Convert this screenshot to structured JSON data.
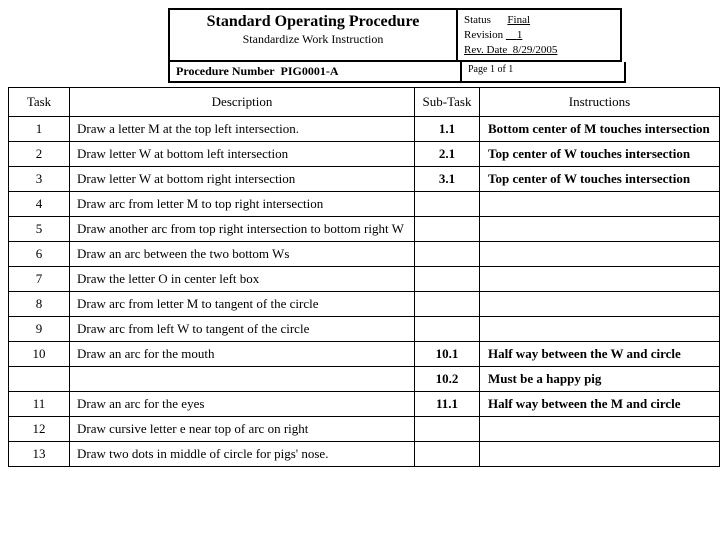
{
  "header": {
    "title": "Standard Operating Procedure",
    "subtitle": "Standardize Work Instruction",
    "status_label": "Status",
    "status_value": "Final",
    "revision_label": "Revision",
    "revision_value": "1",
    "revdate_label": "Rev. Date",
    "revdate_value": "8/29/2005",
    "procnum_label": "Procedure Number",
    "procnum_value": "PIG0001-A",
    "page_info": "Page 1 of 1"
  },
  "columns": {
    "task": "Task",
    "description": "Description",
    "subtask": "Sub-Task",
    "instructions": "Instructions"
  },
  "rows": [
    {
      "task": "1",
      "desc": "Draw a letter M at the top left intersection.",
      "sub": "1.1",
      "inst": "Bottom center of M touches intersection"
    },
    {
      "task": "2",
      "desc": "Draw letter W at bottom left intersection",
      "sub": "2.1",
      "inst": "Top center of W touches intersection"
    },
    {
      "task": "3",
      "desc": "Draw letter W at bottom right intersection",
      "sub": "3.1",
      "inst": "Top center of W touches intersection"
    },
    {
      "task": "4",
      "desc": "Draw arc from letter M to top right intersection",
      "sub": "",
      "inst": ""
    },
    {
      "task": "5",
      "desc": "Draw another arc from top right intersection to bottom right W",
      "sub": "",
      "inst": ""
    },
    {
      "task": "6",
      "desc": "Draw an arc between the two bottom Ws",
      "sub": "",
      "inst": ""
    },
    {
      "task": "7",
      "desc": "Draw the letter O in center left box",
      "sub": "",
      "inst": ""
    },
    {
      "task": "8",
      "desc": "Draw arc from letter M to tangent of the circle",
      "sub": "",
      "inst": ""
    },
    {
      "task": "9",
      "desc": "Draw arc from left W to tangent of the circle",
      "sub": "",
      "inst": ""
    },
    {
      "task": "10",
      "desc": "Draw an arc for the mouth",
      "sub": "10.1",
      "inst": "Half way between the W and circle"
    },
    {
      "task": "",
      "desc": "",
      "sub": "10.2",
      "inst": "Must be a happy pig"
    },
    {
      "task": "11",
      "desc": "Draw an arc for the eyes",
      "sub": "11.1",
      "inst": "Half way between the M and circle"
    },
    {
      "task": "12",
      "desc": "Draw cursive letter e near top of arc on right",
      "sub": "",
      "inst": ""
    },
    {
      "task": "13",
      "desc": "Draw two dots in middle of circle for pigs' nose.",
      "sub": "",
      "inst": ""
    }
  ]
}
